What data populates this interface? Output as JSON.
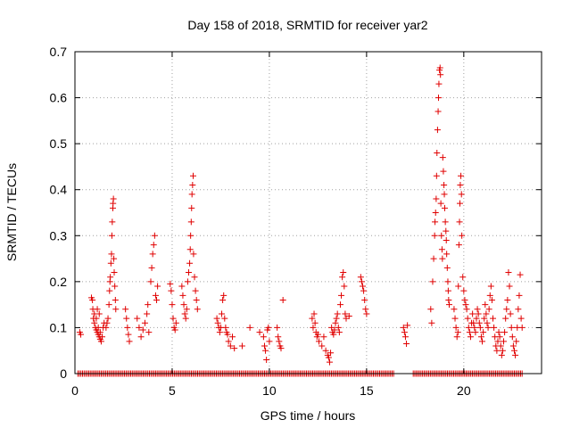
{
  "chart_data": {
    "type": "scatter",
    "title": "Day 158 of 2018, SRMTID for receiver yar2",
    "xlabel": "GPS time / hours",
    "ylabel": "SRMTID / TECUs",
    "xlim": [
      0,
      24
    ],
    "ylim": [
      0,
      0.7
    ],
    "xticks": [
      0,
      5,
      10,
      15,
      20
    ],
    "yticks": [
      0,
      0.1,
      0.2,
      0.3,
      0.4,
      0.5,
      0.6,
      0.7
    ],
    "xtick_labels": [
      "0",
      "5",
      "10",
      "15",
      "20"
    ],
    "ytick_labels": [
      "0",
      "0.1",
      "0.2",
      "0.3",
      "0.4",
      "0.5",
      "0.6",
      "0.7"
    ],
    "grid": true,
    "marker": "+",
    "color": "#e00000",
    "series": [
      {
        "name": "SRMTID",
        "points": [
          [
            0.25,
            0.09
          ],
          [
            0.3,
            0.085
          ],
          [
            0.85,
            0.165
          ],
          [
            0.9,
            0.16
          ],
          [
            0.92,
            0.14
          ],
          [
            0.95,
            0.12
          ],
          [
            1.0,
            0.11
          ],
          [
            1.05,
            0.1
          ],
          [
            1.1,
            0.095
          ],
          [
            1.15,
            0.09
          ],
          [
            1.2,
            0.085
          ],
          [
            1.25,
            0.08
          ],
          [
            1.3,
            0.075
          ],
          [
            1.35,
            0.07
          ],
          [
            1.0,
            0.13
          ],
          [
            1.1,
            0.12
          ],
          [
            1.2,
            0.1
          ],
          [
            1.3,
            0.09
          ],
          [
            1.4,
            0.08
          ],
          [
            1.45,
            0.1
          ],
          [
            1.5,
            0.11
          ],
          [
            1.15,
            0.14
          ],
          [
            1.25,
            0.13
          ],
          [
            1.7,
            0.12
          ],
          [
            1.75,
            0.15
          ],
          [
            1.78,
            0.18
          ],
          [
            1.8,
            0.2
          ],
          [
            1.82,
            0.21
          ],
          [
            1.85,
            0.24
          ],
          [
            1.88,
            0.26
          ],
          [
            1.9,
            0.3
          ],
          [
            1.92,
            0.33
          ],
          [
            1.95,
            0.36
          ],
          [
            1.96,
            0.37
          ],
          [
            1.98,
            0.38
          ],
          [
            2.0,
            0.25
          ],
          [
            2.02,
            0.22
          ],
          [
            2.05,
            0.19
          ],
          [
            2.08,
            0.16
          ],
          [
            2.1,
            0.14
          ],
          [
            1.6,
            0.1
          ],
          [
            1.65,
            0.11
          ],
          [
            2.6,
            0.14
          ],
          [
            2.65,
            0.12
          ],
          [
            2.7,
            0.1
          ],
          [
            2.75,
            0.085
          ],
          [
            2.8,
            0.07
          ],
          [
            3.2,
            0.12
          ],
          [
            3.3,
            0.1
          ],
          [
            3.4,
            0.08
          ],
          [
            3.5,
            0.095
          ],
          [
            3.6,
            0.11
          ],
          [
            3.7,
            0.13
          ],
          [
            3.75,
            0.15
          ],
          [
            3.8,
            0.09
          ],
          [
            3.9,
            0.2
          ],
          [
            3.95,
            0.23
          ],
          [
            4.0,
            0.26
          ],
          [
            4.05,
            0.28
          ],
          [
            4.1,
            0.3
          ],
          [
            4.15,
            0.17
          ],
          [
            4.2,
            0.16
          ],
          [
            4.25,
            0.19
          ],
          [
            4.9,
            0.195
          ],
          [
            4.95,
            0.18
          ],
          [
            5.0,
            0.15
          ],
          [
            5.05,
            0.12
          ],
          [
            5.1,
            0.1
          ],
          [
            5.15,
            0.095
          ],
          [
            5.2,
            0.11
          ],
          [
            5.5,
            0.19
          ],
          [
            5.55,
            0.17
          ],
          [
            5.6,
            0.15
          ],
          [
            5.65,
            0.13
          ],
          [
            5.7,
            0.12
          ],
          [
            5.75,
            0.14
          ],
          [
            5.8,
            0.2
          ],
          [
            5.85,
            0.22
          ],
          [
            5.9,
            0.24
          ],
          [
            5.93,
            0.27
          ],
          [
            5.95,
            0.3
          ],
          [
            5.98,
            0.33
          ],
          [
            6.0,
            0.36
          ],
          [
            6.02,
            0.39
          ],
          [
            6.05,
            0.41
          ],
          [
            6.08,
            0.43
          ],
          [
            6.1,
            0.26
          ],
          [
            6.15,
            0.21
          ],
          [
            6.2,
            0.18
          ],
          [
            6.25,
            0.16
          ],
          [
            6.3,
            0.14
          ],
          [
            7.3,
            0.12
          ],
          [
            7.35,
            0.11
          ],
          [
            7.4,
            0.1
          ],
          [
            7.45,
            0.09
          ],
          [
            7.5,
            0.1
          ],
          [
            7.55,
            0.13
          ],
          [
            7.6,
            0.16
          ],
          [
            7.65,
            0.17
          ],
          [
            7.7,
            0.12
          ],
          [
            7.75,
            0.1
          ],
          [
            7.8,
            0.09
          ],
          [
            7.85,
            0.085
          ],
          [
            7.9,
            0.07
          ],
          [
            8.0,
            0.06
          ],
          [
            8.1,
            0.08
          ],
          [
            8.2,
            0.055
          ],
          [
            8.6,
            0.06
          ],
          [
            9.0,
            0.1
          ],
          [
            9.5,
            0.09
          ],
          [
            9.7,
            0.08
          ],
          [
            9.75,
            0.06
          ],
          [
            9.8,
            0.05
          ],
          [
            9.85,
            0.03
          ],
          [
            9.9,
            0.095
          ],
          [
            9.95,
            0.1
          ],
          [
            10.0,
            0.07
          ],
          [
            10.4,
            0.1
          ],
          [
            10.45,
            0.08
          ],
          [
            10.5,
            0.07
          ],
          [
            10.55,
            0.06
          ],
          [
            10.6,
            0.055
          ],
          [
            10.7,
            0.16
          ],
          [
            12.2,
            0.12
          ],
          [
            12.25,
            0.1
          ],
          [
            12.3,
            0.13
          ],
          [
            12.35,
            0.11
          ],
          [
            12.4,
            0.09
          ],
          [
            12.45,
            0.08
          ],
          [
            12.5,
            0.085
          ],
          [
            12.55,
            0.07
          ],
          [
            12.7,
            0.06
          ],
          [
            12.8,
            0.08
          ],
          [
            12.9,
            0.05
          ],
          [
            13.0,
            0.04
          ],
          [
            13.05,
            0.035
          ],
          [
            13.1,
            0.025
          ],
          [
            13.15,
            0.045
          ],
          [
            13.2,
            0.1
          ],
          [
            13.25,
            0.09
          ],
          [
            13.3,
            0.085
          ],
          [
            13.35,
            0.095
          ],
          [
            13.4,
            0.11
          ],
          [
            13.45,
            0.12
          ],
          [
            13.5,
            0.13
          ],
          [
            13.55,
            0.1
          ],
          [
            13.6,
            0.09
          ],
          [
            13.65,
            0.15
          ],
          [
            13.7,
            0.17
          ],
          [
            13.75,
            0.21
          ],
          [
            13.8,
            0.22
          ],
          [
            13.85,
            0.19
          ],
          [
            13.9,
            0.13
          ],
          [
            13.95,
            0.12
          ],
          [
            14.1,
            0.125
          ],
          [
            14.7,
            0.21
          ],
          [
            14.75,
            0.2
          ],
          [
            14.8,
            0.19
          ],
          [
            14.85,
            0.18
          ],
          [
            14.9,
            0.16
          ],
          [
            14.95,
            0.14
          ],
          [
            15.0,
            0.13
          ],
          [
            16.9,
            0.1
          ],
          [
            16.95,
            0.09
          ],
          [
            17.0,
            0.08
          ],
          [
            17.05,
            0.065
          ],
          [
            17.1,
            0.105
          ],
          [
            18.3,
            0.14
          ],
          [
            18.35,
            0.11
          ],
          [
            18.4,
            0.2
          ],
          [
            18.45,
            0.25
          ],
          [
            18.5,
            0.3
          ],
          [
            18.52,
            0.33
          ],
          [
            18.55,
            0.35
          ],
          [
            18.58,
            0.38
          ],
          [
            18.6,
            0.43
          ],
          [
            18.62,
            0.48
          ],
          [
            18.65,
            0.53
          ],
          [
            18.68,
            0.57
          ],
          [
            18.7,
            0.6
          ],
          [
            18.72,
            0.63
          ],
          [
            18.75,
            0.66
          ],
          [
            18.78,
            0.665
          ],
          [
            18.8,
            0.65
          ],
          [
            18.82,
            0.37
          ],
          [
            18.85,
            0.3
          ],
          [
            18.88,
            0.27
          ],
          [
            18.9,
            0.25
          ],
          [
            18.92,
            0.47
          ],
          [
            18.95,
            0.44
          ],
          [
            18.98,
            0.41
          ],
          [
            19.0,
            0.39
          ],
          [
            19.02,
            0.36
          ],
          [
            19.05,
            0.33
          ],
          [
            19.08,
            0.31
          ],
          [
            19.1,
            0.29
          ],
          [
            19.12,
            0.26
          ],
          [
            19.15,
            0.23
          ],
          [
            19.18,
            0.2
          ],
          [
            19.2,
            0.18
          ],
          [
            19.22,
            0.16
          ],
          [
            19.25,
            0.15
          ],
          [
            19.5,
            0.14
          ],
          [
            19.55,
            0.12
          ],
          [
            19.6,
            0.1
          ],
          [
            19.65,
            0.08
          ],
          [
            19.7,
            0.09
          ],
          [
            19.72,
            0.19
          ],
          [
            19.75,
            0.28
          ],
          [
            19.78,
            0.33
          ],
          [
            19.8,
            0.37
          ],
          [
            19.82,
            0.41
          ],
          [
            19.85,
            0.43
          ],
          [
            19.88,
            0.39
          ],
          [
            19.9,
            0.3
          ],
          [
            19.95,
            0.21
          ],
          [
            20.0,
            0.18
          ],
          [
            20.05,
            0.16
          ],
          [
            20.1,
            0.15
          ],
          [
            20.15,
            0.14
          ],
          [
            20.2,
            0.12
          ],
          [
            20.25,
            0.1
          ],
          [
            20.3,
            0.09
          ],
          [
            20.35,
            0.08
          ],
          [
            20.4,
            0.11
          ],
          [
            20.45,
            0.13
          ],
          [
            20.5,
            0.11
          ],
          [
            20.55,
            0.1
          ],
          [
            20.6,
            0.09
          ],
          [
            20.65,
            0.12
          ],
          [
            20.7,
            0.14
          ],
          [
            20.75,
            0.13
          ],
          [
            20.8,
            0.11
          ],
          [
            20.85,
            0.1
          ],
          [
            20.9,
            0.08
          ],
          [
            20.95,
            0.07
          ],
          [
            21.0,
            0.09
          ],
          [
            21.05,
            0.12
          ],
          [
            21.1,
            0.15
          ],
          [
            21.15,
            0.13
          ],
          [
            21.2,
            0.11
          ],
          [
            21.25,
            0.1
          ],
          [
            21.3,
            0.14
          ],
          [
            21.35,
            0.17
          ],
          [
            21.4,
            0.19
          ],
          [
            21.45,
            0.16
          ],
          [
            21.5,
            0.12
          ],
          [
            21.55,
            0.1
          ],
          [
            21.6,
            0.08
          ],
          [
            21.65,
            0.06
          ],
          [
            21.7,
            0.05
          ],
          [
            21.75,
            0.07
          ],
          [
            21.8,
            0.09
          ],
          [
            21.85,
            0.08
          ],
          [
            21.9,
            0.06
          ],
          [
            21.95,
            0.04
          ],
          [
            22.0,
            0.05
          ],
          [
            22.05,
            0.07
          ],
          [
            22.1,
            0.09
          ],
          [
            22.15,
            0.12
          ],
          [
            22.2,
            0.14
          ],
          [
            22.25,
            0.16
          ],
          [
            22.3,
            0.22
          ],
          [
            22.35,
            0.19
          ],
          [
            22.4,
            0.13
          ],
          [
            22.45,
            0.1
          ],
          [
            22.5,
            0.08
          ],
          [
            22.55,
            0.06
          ],
          [
            22.6,
            0.05
          ],
          [
            22.65,
            0.04
          ],
          [
            22.7,
            0.07
          ],
          [
            22.75,
            0.1
          ],
          [
            22.8,
            0.14
          ],
          [
            22.85,
            0.17
          ],
          [
            22.9,
            0.215
          ],
          [
            22.95,
            0.12
          ],
          [
            23.0,
            0.1
          ]
        ],
        "zero_runs": [
          [
            0.15,
            16.4
          ],
          [
            17.4,
            23.0
          ]
        ]
      }
    ]
  }
}
